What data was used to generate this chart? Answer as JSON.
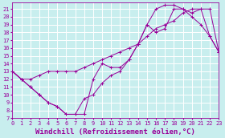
{
  "xlabel": "Windchill (Refroidissement éolien,°C)",
  "bg_color": "#c8eeee",
  "grid_color": "#ffffff",
  "line_color": "#990099",
  "xlim": [
    0,
    23
  ],
  "ylim": [
    7,
    21.5
  ],
  "xticks": [
    0,
    1,
    2,
    3,
    4,
    5,
    6,
    7,
    8,
    9,
    10,
    11,
    12,
    13,
    14,
    15,
    16,
    17,
    18,
    19,
    20,
    21,
    22,
    23
  ],
  "yticks": [
    7,
    8,
    9,
    10,
    11,
    12,
    13,
    14,
    15,
    16,
    17,
    18,
    19,
    20,
    21
  ],
  "line1_x": [
    0,
    1,
    2,
    3,
    4,
    5,
    6,
    7,
    8,
    9,
    10,
    11,
    12,
    13,
    14,
    15,
    16,
    17,
    18,
    19,
    20,
    21,
    22,
    23
  ],
  "line1_y": [
    13.0,
    12.0,
    11.0,
    10.0,
    9.0,
    8.5,
    7.5,
    7.5,
    7.5,
    12.0,
    14.0,
    13.5,
    13.5,
    14.5,
    16.5,
    19.0,
    18.0,
    18.5,
    21.0,
    21.0,
    20.5,
    21.0,
    17.5,
    15.5
  ],
  "line2_x": [
    0,
    1,
    2,
    3,
    4,
    5,
    6,
    7,
    8,
    9,
    10,
    11,
    12,
    13,
    14,
    15,
    16,
    17,
    18,
    19,
    20,
    21,
    22,
    23
  ],
  "line2_y": [
    13.0,
    12.0,
    11.0,
    10.0,
    9.0,
    8.5,
    7.5,
    7.5,
    9.5,
    10.0,
    11.5,
    12.5,
    13.0,
    14.5,
    16.5,
    19.0,
    21.0,
    21.5,
    21.5,
    21.0,
    20.0,
    19.0,
    17.5,
    15.5
  ],
  "line3_x": [
    0,
    1,
    2,
    3,
    4,
    5,
    6,
    7,
    8,
    9,
    10,
    11,
    12,
    13,
    14,
    15,
    16,
    17,
    18,
    19,
    20,
    21,
    22,
    23
  ],
  "line3_y": [
    13.0,
    12.0,
    12.0,
    12.5,
    13.0,
    13.0,
    13.0,
    13.0,
    13.5,
    14.0,
    14.5,
    15.0,
    15.5,
    16.0,
    16.5,
    17.5,
    18.5,
    19.0,
    19.5,
    20.5,
    21.0,
    21.0,
    21.0,
    15.5
  ],
  "tick_fontsize": 5.0,
  "xlabel_fontsize": 6.5
}
